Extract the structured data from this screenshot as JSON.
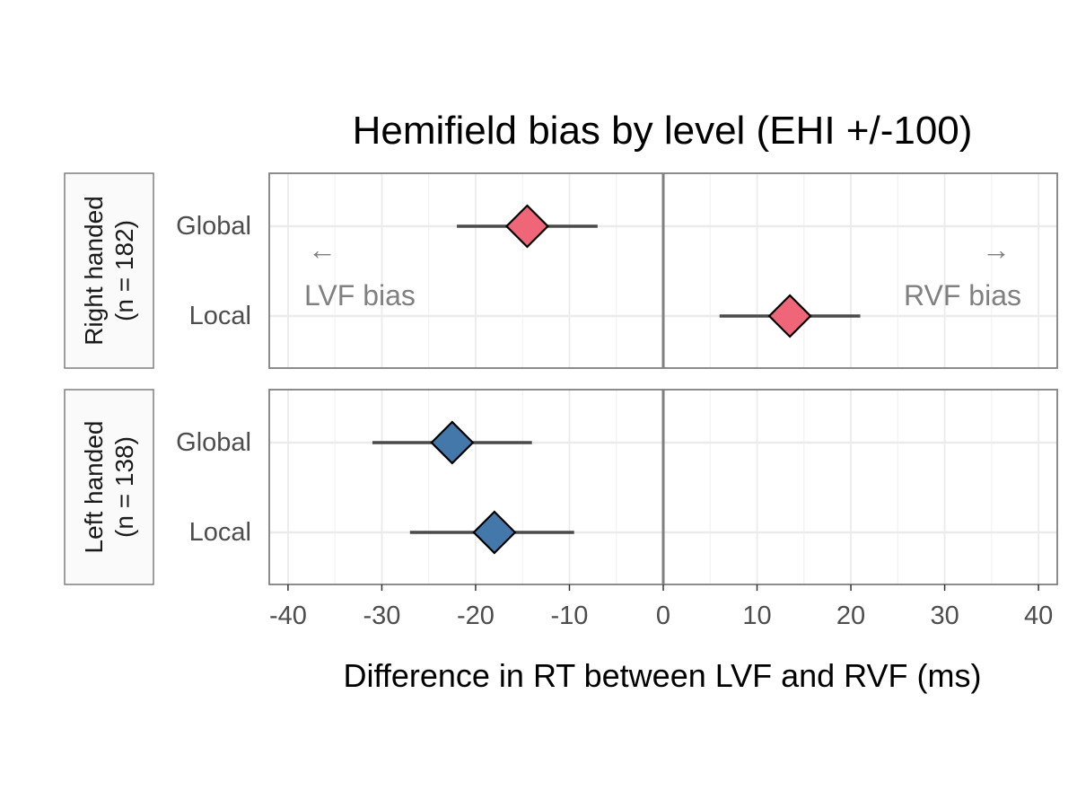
{
  "chart_data": {
    "type": "forest",
    "title": "Hemifield bias by level (EHI +/-100)",
    "xlabel": "Difference in RT between LVF and RVF (ms)",
    "xlim": [
      -42,
      42
    ],
    "xticks": [
      -40,
      -30,
      -20,
      -10,
      0,
      10,
      20,
      30,
      40
    ],
    "xtick_labels": [
      "-40",
      "-30",
      "-20",
      "-10",
      "0",
      "10",
      "20",
      "30",
      "40"
    ],
    "grid": true,
    "annotations": {
      "left_arrow": "←",
      "left_label": "LVF bias",
      "right_arrow": "→",
      "right_label": "RVF bias"
    },
    "panels": [
      {
        "strip_line1": "Right handed",
        "strip_line2": "(n = 182)",
        "color": "#EE6677",
        "rows": [
          {
            "label": "Global",
            "estimate": -14.5,
            "lower": -22.0,
            "upper": -7.0
          },
          {
            "label": "Local",
            "estimate": 13.5,
            "lower": 6.0,
            "upper": 21.0
          }
        ]
      },
      {
        "strip_line1": "Left handed",
        "strip_line2": "(n = 138)",
        "color": "#4477AA",
        "rows": [
          {
            "label": "Global",
            "estimate": -22.5,
            "lower": -31.0,
            "upper": -14.0
          },
          {
            "label": "Local",
            "estimate": -18.0,
            "lower": -27.0,
            "upper": -9.5
          }
        ]
      }
    ]
  }
}
